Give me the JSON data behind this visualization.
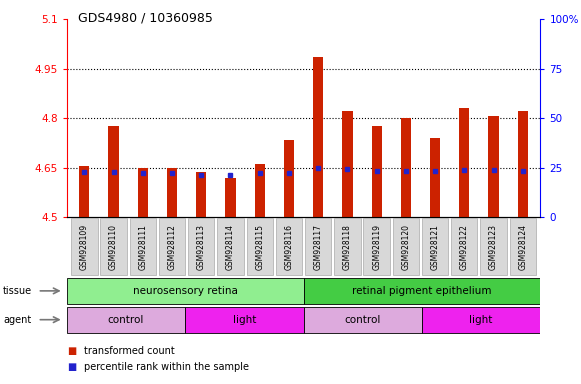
{
  "title": "GDS4980 / 10360985",
  "samples": [
    "GSM928109",
    "GSM928110",
    "GSM928111",
    "GSM928112",
    "GSM928113",
    "GSM928114",
    "GSM928115",
    "GSM928116",
    "GSM928117",
    "GSM928118",
    "GSM928119",
    "GSM928120",
    "GSM928121",
    "GSM928122",
    "GSM928123",
    "GSM928124"
  ],
  "red_values": [
    4.655,
    4.775,
    4.648,
    4.648,
    4.635,
    4.617,
    4.662,
    4.735,
    4.985,
    4.82,
    4.775,
    4.8,
    4.74,
    4.83,
    4.805,
    4.82
  ],
  "blue_values": [
    4.637,
    4.637,
    4.632,
    4.632,
    4.627,
    4.628,
    4.632,
    4.632,
    4.648,
    4.647,
    4.64,
    4.64,
    4.64,
    4.643,
    4.642,
    4.64
  ],
  "ymin": 4.5,
  "ymax": 5.1,
  "y2min": 0,
  "y2max": 100,
  "yticks": [
    4.5,
    4.65,
    4.8,
    4.95,
    5.1
  ],
  "y2ticks": [
    0,
    25,
    50,
    75,
    100
  ],
  "y2ticklabels": [
    "0",
    "25",
    "50",
    "75",
    "100%"
  ],
  "grid_lines": [
    4.65,
    4.8,
    4.95
  ],
  "tissue_color_left": "#90ee90",
  "tissue_color_right": "#44cc44",
  "agent_control_color": "#ddaadd",
  "agent_light_color": "#ee22ee",
  "bar_width": 0.35,
  "red_color": "#cc2200",
  "blue_color": "#2222cc",
  "bg_color": "#f0f0f0",
  "tissue_texts": [
    "neurosensory retina",
    "retinal pigment epithelium"
  ],
  "agent_texts": [
    "control",
    "light",
    "control",
    "light"
  ],
  "legend_red": "transformed count",
  "legend_blue": "percentile rank within the sample"
}
